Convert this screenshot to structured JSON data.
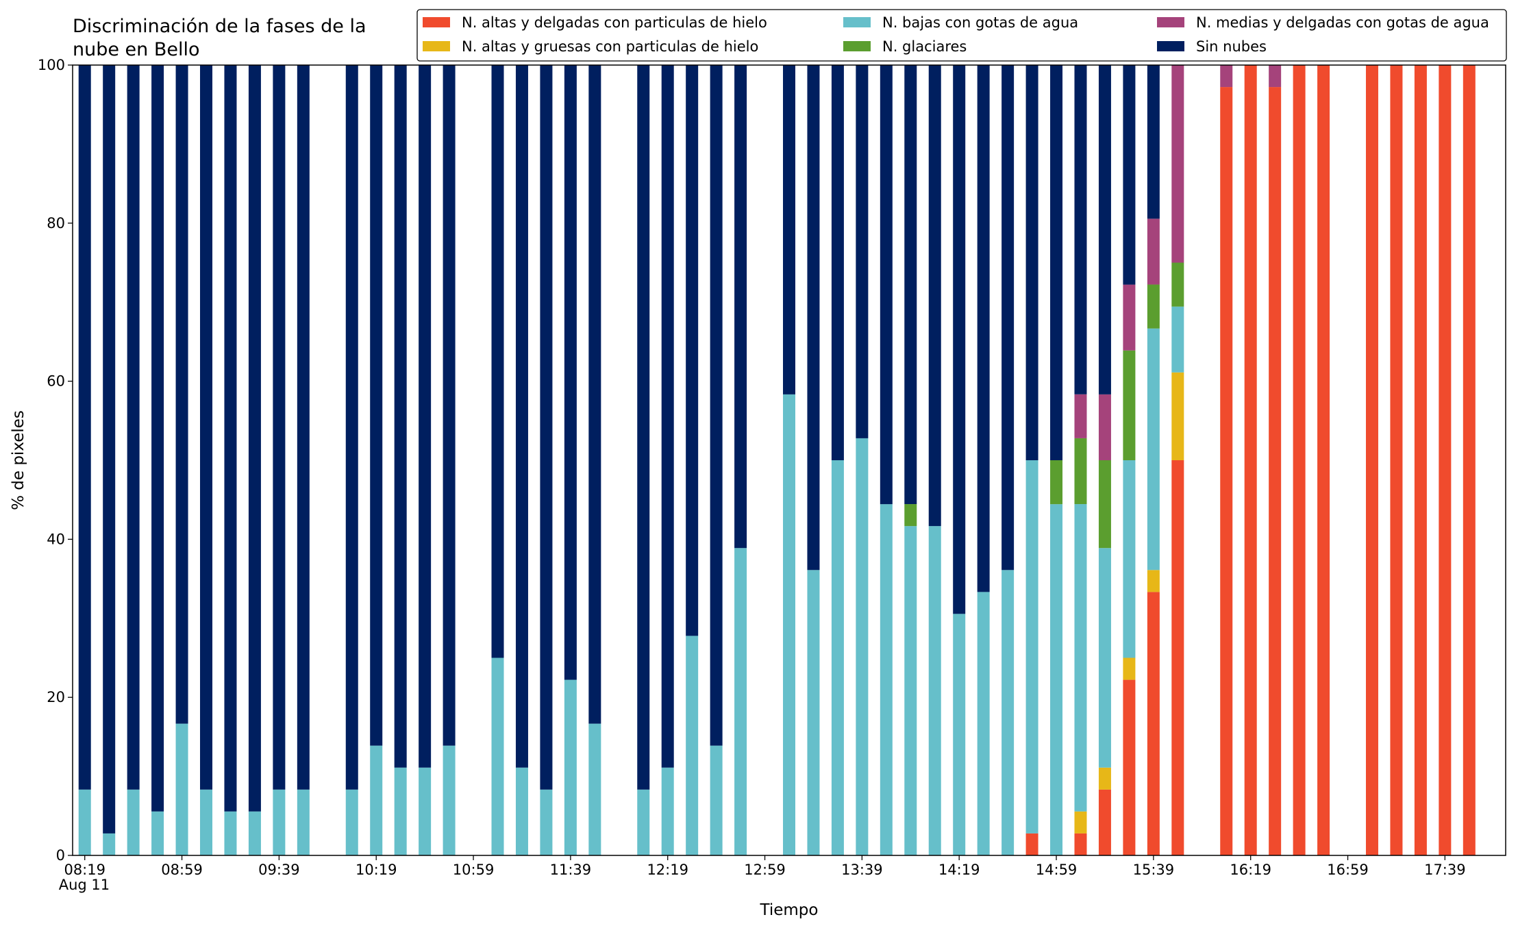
{
  "chart_data": {
    "type": "stacked_bar",
    "title": "Discriminación de la fases de la nube en Bello",
    "xlabel": "Tiempo",
    "ylabel": "% de pixeles",
    "x": [
      "08:19",
      "08:29",
      "08:39",
      "08:49",
      "08:59",
      "09:09",
      "09:19",
      "09:29",
      "09:39",
      "09:49",
      "10:09",
      "10:19",
      "10:29",
      "10:39",
      "10:49",
      "11:09",
      "11:19",
      "11:29",
      "11:39",
      "11:49",
      "12:09",
      "12:19",
      "12:29",
      "12:39",
      "12:49",
      "13:09",
      "13:19",
      "13:29",
      "13:39",
      "13:49",
      "13:59",
      "14:09",
      "14:19",
      "14:29",
      "14:39",
      "14:49",
      "14:59",
      "15:09",
      "15:19",
      "15:29",
      "15:39",
      "15:49",
      "16:09",
      "16:19",
      "16:29",
      "16:39",
      "16:49",
      "17:09",
      "17:19",
      "17:29",
      "17:39",
      "17:49"
    ],
    "xlim": [
      "08:14",
      "18:04"
    ],
    "xticks": [
      "08:19",
      "08:59",
      "09:39",
      "10:19",
      "10:59",
      "11:39",
      "12:19",
      "12:59",
      "13:39",
      "14:19",
      "14:59",
      "15:39",
      "16:19",
      "16:59",
      "17:39"
    ],
    "xtick_sublabel": "Aug 11",
    "ylim": [
      0,
      100
    ],
    "yticks": [
      0,
      20,
      40,
      60,
      80,
      100
    ],
    "legend": "top right",
    "series": [
      {
        "name": "N. altas y delgadas con particulas de hielo",
        "color": "#f04b2d",
        "values": [
          0,
          0,
          0,
          0,
          0,
          0,
          0,
          0,
          0,
          0,
          0,
          0,
          0,
          0,
          0,
          0,
          0,
          0,
          0,
          0,
          0,
          0,
          0,
          0,
          0,
          0,
          0,
          0,
          0,
          0,
          0,
          0,
          0,
          0,
          0,
          2.78,
          0,
          2.78,
          8.33,
          22.22,
          33.33,
          50,
          97.22,
          100,
          97.22,
          100,
          100,
          100,
          100,
          100,
          100,
          100
        ]
      },
      {
        "name": "N. altas y gruesas con particulas de hielo",
        "color": "#e7b718",
        "values": [
          0,
          0,
          0,
          0,
          0,
          0,
          0,
          0,
          0,
          0,
          0,
          0,
          0,
          0,
          0,
          0,
          0,
          0,
          0,
          0,
          0,
          0,
          0,
          0,
          0,
          0,
          0,
          0,
          0,
          0,
          0,
          0,
          0,
          0,
          0,
          0,
          0,
          2.78,
          2.78,
          2.78,
          2.78,
          11.11,
          0,
          0,
          0,
          0,
          0,
          0,
          0,
          0,
          0,
          0
        ]
      },
      {
        "name": "N. bajas con gotas de agua",
        "color": "#66bfca",
        "values": [
          8.33,
          2.78,
          8.33,
          5.56,
          16.67,
          8.33,
          5.56,
          5.56,
          8.33,
          8.33,
          8.33,
          13.89,
          11.11,
          11.11,
          13.89,
          25,
          11.11,
          8.33,
          22.22,
          16.67,
          8.33,
          11.11,
          27.78,
          13.89,
          38.89,
          58.33,
          36.11,
          50,
          52.78,
          44.44,
          41.67,
          41.67,
          30.56,
          33.33,
          36.11,
          47.22,
          44.44,
          38.89,
          27.78,
          25,
          30.56,
          8.33,
          0,
          0,
          0,
          0,
          0,
          0,
          0,
          0,
          0,
          0
        ]
      },
      {
        "name": "N. glaciares",
        "color": "#5b9e2f",
        "values": [
          0,
          0,
          0,
          0,
          0,
          0,
          0,
          0,
          0,
          0,
          0,
          0,
          0,
          0,
          0,
          0,
          0,
          0,
          0,
          0,
          0,
          0,
          0,
          0,
          0,
          0,
          0,
          0,
          0,
          0,
          2.78,
          0,
          0,
          0,
          0,
          0,
          5.56,
          8.33,
          11.11,
          13.89,
          5.56,
          5.56,
          0,
          0,
          0,
          0,
          0,
          0,
          0,
          0,
          0,
          0
        ]
      },
      {
        "name": "N. medias y delgadas con gotas de agua",
        "color": "#a5437b",
        "values": [
          0,
          0,
          0,
          0,
          0,
          0,
          0,
          0,
          0,
          0,
          0,
          0,
          0,
          0,
          0,
          0,
          0,
          0,
          0,
          0,
          0,
          0,
          0,
          0,
          0,
          0,
          0,
          0,
          0,
          0,
          0,
          0,
          0,
          0,
          0,
          0,
          0,
          5.56,
          8.33,
          8.33,
          8.33,
          25,
          2.78,
          0,
          2.78,
          0,
          0,
          0,
          0,
          0,
          0,
          0
        ]
      },
      {
        "name": "Sin nubes",
        "color": "#001f5f",
        "values": [
          91.67,
          97.22,
          91.67,
          94.44,
          83.33,
          91.67,
          94.44,
          94.44,
          91.67,
          91.67,
          91.67,
          86.11,
          88.89,
          88.89,
          86.11,
          75,
          88.89,
          91.67,
          77.78,
          83.33,
          91.67,
          88.89,
          72.22,
          86.11,
          61.11,
          41.67,
          63.89,
          50,
          47.22,
          55.56,
          55.56,
          58.33,
          69.44,
          66.67,
          63.89,
          50,
          50,
          41.67,
          41.67,
          27.78,
          19.44,
          0,
          0,
          0,
          0,
          0,
          0,
          0,
          0,
          0,
          0,
          0
        ]
      }
    ]
  }
}
